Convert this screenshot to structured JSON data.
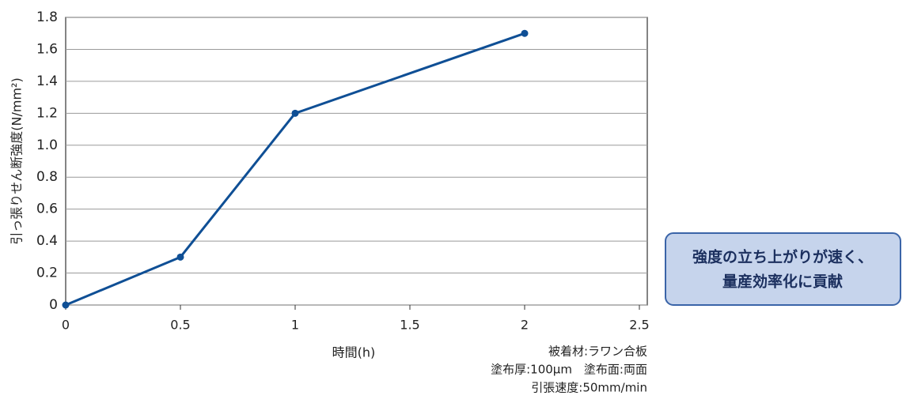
{
  "chart_data": {
    "type": "line",
    "x": [
      0,
      0.5,
      1,
      2
    ],
    "series": [
      {
        "color": "#0f4f95",
        "values": [
          0,
          0.3,
          1.2,
          1.7
        ]
      }
    ],
    "xlim": [
      0,
      2.5
    ],
    "xticks": [
      0,
      0.5,
      1,
      1.5,
      2,
      2.5
    ],
    "ylim": [
      0,
      1.8
    ],
    "yticks": [
      0,
      0.2,
      0.4,
      0.6,
      0.8,
      {
        "value": 1.0,
        "label": "1.0"
      },
      1.2,
      1.4,
      1.6,
      1.8
    ],
    "grid": true,
    "x_label": "時間(h)",
    "y_label": "引っ張りせん断強度(N/mm²)",
    "notes": [
      "被着材:ラワン合板",
      "塗布厚:100μm　塗布面:両面",
      "引張速度:50mm/min"
    ],
    "callout": [
      "強度の立ち上がりが速く、",
      "量産効率化に貢献"
    ]
  }
}
